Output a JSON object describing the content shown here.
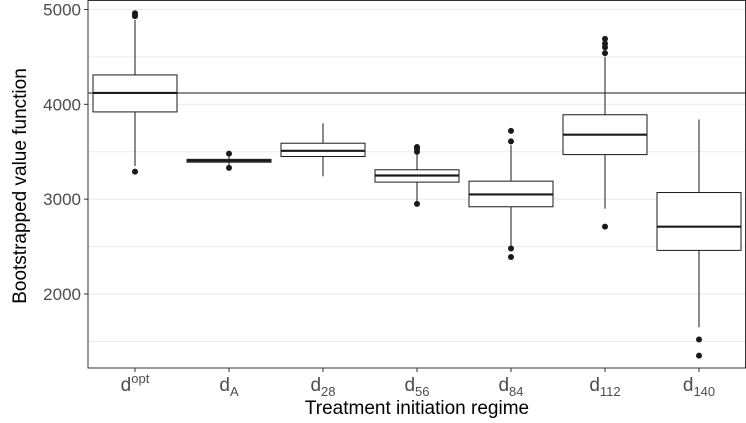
{
  "chart_data": {
    "type": "boxplot",
    "xlabel": "Treatment initiation regime",
    "ylabel": "Bootstrapped value function",
    "ylim": [
      1220,
      5100
    ],
    "y_ticks": [
      2000,
      3000,
      4000,
      5000
    ],
    "y_tick_labels": [
      "2000",
      "3000",
      "4000",
      "5000"
    ],
    "grid": {
      "major": true,
      "minor": true
    },
    "reference_line": 4120,
    "colors": {
      "box_fill": "#ffffff",
      "stroke": "#1a1a1a",
      "grid": "#ebebeb",
      "point": "#1a1a1a"
    },
    "categories": [
      {
        "base": "d",
        "sup": "opt",
        "sub": ""
      },
      {
        "base": "d",
        "sup": "",
        "sub": "A"
      },
      {
        "base": "d",
        "sup": "",
        "sub": "28"
      },
      {
        "base": "d",
        "sup": "",
        "sub": "56"
      },
      {
        "base": "d",
        "sup": "",
        "sub": "84"
      },
      {
        "base": "d",
        "sup": "",
        "sub": "112"
      },
      {
        "base": "d",
        "sup": "",
        "sub": "140"
      }
    ],
    "boxes": [
      {
        "min": 3350,
        "q1": 3920,
        "median": 4120,
        "q3": 4310,
        "max": 4890,
        "outliers": [
          3290,
          4930,
          4950,
          4960
        ]
      },
      {
        "min": 3350,
        "q1": 3390,
        "median": 3405,
        "q3": 3420,
        "max": 3460,
        "outliers": [
          3330,
          3480
        ]
      },
      {
        "min": 3240,
        "q1": 3450,
        "median": 3510,
        "q3": 3590,
        "max": 3800,
        "outliers": []
      },
      {
        "min": 2960,
        "q1": 3180,
        "median": 3250,
        "q3": 3310,
        "max": 3480,
        "outliers": [
          2950,
          3500,
          3530,
          3550
        ]
      },
      {
        "min": 2500,
        "q1": 2920,
        "median": 3050,
        "q3": 3190,
        "max": 3570,
        "outliers": [
          2390,
          2480,
          3610,
          3720
        ]
      },
      {
        "min": 2900,
        "q1": 3470,
        "median": 3680,
        "q3": 3890,
        "max": 4500,
        "outliers": [
          2710,
          4540,
          4600,
          4640,
          4690
        ]
      },
      {
        "min": 1650,
        "q1": 2460,
        "median": 2710,
        "q3": 3070,
        "max": 3840,
        "outliers": [
          1350,
          1520
        ]
      }
    ]
  }
}
